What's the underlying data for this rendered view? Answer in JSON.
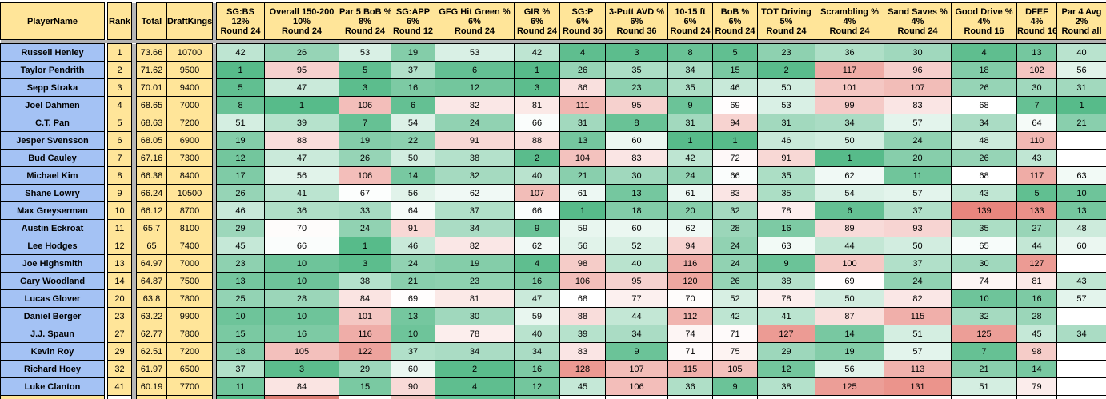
{
  "colors": {
    "header_bg": "#ffe599",
    "player_bg": "#a4c2f4",
    "yellow_cell_bg": "#ffe599",
    "separator": "#b7b7b7",
    "header_divider": "#b3b3b3",
    "border": "#000000",
    "text": "#000000"
  },
  "color_scale": {
    "min_value": 1,
    "mid_value": 68,
    "max_value": 145,
    "min_color": "#57bb8a",
    "mid_color": "#ffffff",
    "max_color": "#e67c73"
  },
  "header": {
    "player": "PlayerName",
    "rank": "Rank",
    "total": "Total",
    "draftkings": "DraftKings"
  },
  "stat_columns": [
    {
      "title": "SG:BS",
      "weight": "12%",
      "round": "Round 24"
    },
    {
      "title": "Overall 150-200",
      "weight": "10%",
      "round": "Round 24"
    },
    {
      "title": "Par 5 BoB %",
      "weight": "8%",
      "round": "Round 24"
    },
    {
      "title": "SG:APP",
      "weight": "6%",
      "round": "Round 12"
    },
    {
      "title": "GFG Hit Green %",
      "weight": "6%",
      "round": "Round 24"
    },
    {
      "title": "GIR %",
      "weight": "6%",
      "round": "Round 24"
    },
    {
      "title": "SG:P",
      "weight": "6%",
      "round": "Round 36"
    },
    {
      "title": "3-Putt AVD %",
      "weight": "6%",
      "round": "Round 36"
    },
    {
      "title": "10-15 ft",
      "weight": "6%",
      "round": "Round 24"
    },
    {
      "title": "BoB %",
      "weight": "6%",
      "round": "Round 24"
    },
    {
      "title": "TOT Driving",
      "weight": "5%",
      "round": "Round 24"
    },
    {
      "title": "Scrambling %",
      "weight": "4%",
      "round": "Round 24"
    },
    {
      "title": "Sand Saves %",
      "weight": "4%",
      "round": "Round 24"
    },
    {
      "title": "Good Drive %",
      "weight": "4%",
      "round": "Round 16"
    },
    {
      "title": "DFEF",
      "weight": "4%",
      "round": "Round 16"
    },
    {
      "title": "Par 4 Avg",
      "weight": "2%",
      "round": "Round all"
    }
  ],
  "players": [
    {
      "name": "Russell Henley",
      "rank": "1",
      "total": "73.66",
      "dk": "10700",
      "stats": [
        42,
        26,
        53,
        19,
        53,
        42,
        4,
        3,
        8,
        5,
        23,
        36,
        30,
        4,
        13,
        40
      ]
    },
    {
      "name": "Taylor Pendrith",
      "rank": "2",
      "total": "71.62",
      "dk": "9500",
      "stats": [
        1,
        95,
        5,
        37,
        6,
        1,
        26,
        35,
        34,
        15,
        2,
        117,
        96,
        18,
        102,
        56
      ]
    },
    {
      "name": "Sepp Straka",
      "rank": "3",
      "total": "70.01",
      "dk": "9400",
      "stats": [
        5,
        47,
        3,
        16,
        12,
        3,
        86,
        23,
        35,
        46,
        50,
        101,
        107,
        26,
        30,
        31
      ]
    },
    {
      "name": "Joel Dahmen",
      "rank": "4",
      "total": "68.65",
      "dk": "7000",
      "stats": [
        8,
        1,
        106,
        6,
        82,
        81,
        111,
        95,
        9,
        69,
        53,
        99,
        83,
        68,
        7,
        1
      ]
    },
    {
      "name": "C.T. Pan",
      "rank": "5",
      "total": "68.63",
      "dk": "7200",
      "stats": [
        51,
        39,
        7,
        54,
        24,
        66,
        31,
        8,
        31,
        94,
        31,
        34,
        57,
        34,
        64,
        21
      ]
    },
    {
      "name": "Jesper Svensson",
      "rank": "6",
      "total": "68.05",
      "dk": "6900",
      "stats": [
        19,
        88,
        19,
        22,
        91,
        88,
        13,
        60,
        1,
        1,
        46,
        50,
        24,
        48,
        110,
        null
      ]
    },
    {
      "name": "Bud Cauley",
      "rank": "7",
      "total": "67.16",
      "dk": "7300",
      "stats": [
        12,
        47,
        26,
        50,
        38,
        2,
        104,
        83,
        42,
        72,
        91,
        1,
        20,
        26,
        43,
        null
      ]
    },
    {
      "name": "Michael Kim",
      "rank": "8",
      "total": "66.38",
      "dk": "8400",
      "stats": [
        17,
        56,
        106,
        14,
        32,
        40,
        21,
        30,
        24,
        66,
        35,
        62,
        11,
        68,
        117,
        63
      ]
    },
    {
      "name": "Shane Lowry",
      "rank": "9",
      "total": "66.24",
      "dk": "10500",
      "stats": [
        26,
        41,
        67,
        56,
        62,
        107,
        61,
        13,
        61,
        83,
        35,
        54,
        57,
        43,
        5,
        10
      ]
    },
    {
      "name": "Max Greyserman",
      "rank": "10",
      "total": "66.12",
      "dk": "8700",
      "stats": [
        46,
        36,
        33,
        64,
        37,
        66,
        1,
        18,
        20,
        32,
        78,
        6,
        37,
        139,
        133,
        13
      ]
    },
    {
      "name": "Austin Eckroat",
      "rank": "11",
      "total": "65.7",
      "dk": "8100",
      "stats": [
        29,
        70,
        24,
        91,
        34,
        9,
        59,
        60,
        62,
        28,
        16,
        89,
        93,
        35,
        27,
        48
      ]
    },
    {
      "name": "Lee Hodges",
      "rank": "12",
      "total": "65",
      "dk": "7400",
      "stats": [
        45,
        66,
        1,
        46,
        82,
        62,
        56,
        52,
        94,
        24,
        63,
        44,
        50,
        65,
        44,
        60
      ]
    },
    {
      "name": "Joe Highsmith",
      "rank": "13",
      "total": "64.97",
      "dk": "7000",
      "stats": [
        23,
        10,
        3,
        24,
        19,
        4,
        98,
        40,
        116,
        24,
        9,
        100,
        37,
        30,
        127,
        null
      ]
    },
    {
      "name": "Gary Woodland",
      "rank": "14",
      "total": "64.87",
      "dk": "7500",
      "stats": [
        13,
        10,
        38,
        21,
        23,
        16,
        106,
        95,
        120,
        26,
        38,
        69,
        24,
        74,
        81,
        43
      ]
    },
    {
      "name": "Lucas Glover",
      "rank": "20",
      "total": "63.8",
      "dk": "7800",
      "stats": [
        25,
        28,
        84,
        69,
        81,
        47,
        68,
        77,
        70,
        52,
        78,
        50,
        82,
        10,
        16,
        57
      ]
    },
    {
      "name": "Daniel Berger",
      "rank": "23",
      "total": "63.22",
      "dk": "9900",
      "stats": [
        10,
        10,
        101,
        13,
        30,
        59,
        88,
        44,
        112,
        42,
        41,
        87,
        115,
        32,
        28,
        null
      ]
    },
    {
      "name": "J.J. Spaun",
      "rank": "27",
      "total": "62.77",
      "dk": "7800",
      "stats": [
        15,
        16,
        116,
        10,
        78,
        40,
        39,
        34,
        74,
        71,
        127,
        14,
        51,
        125,
        45,
        34
      ]
    },
    {
      "name": "Kevin Roy",
      "rank": "29",
      "total": "62.51",
      "dk": "7200",
      "stats": [
        18,
        105,
        122,
        37,
        34,
        34,
        83,
        9,
        71,
        75,
        29,
        19,
        57,
        7,
        98,
        null
      ]
    },
    {
      "name": "Richard Hoey",
      "rank": "32",
      "total": "61.97",
      "dk": "6500",
      "stats": [
        37,
        3,
        29,
        60,
        2,
        16,
        128,
        107,
        115,
        105,
        12,
        56,
        113,
        21,
        14,
        null
      ]
    },
    {
      "name": "Luke Clanton",
      "rank": "41",
      "total": "60.19",
      "dk": "7700",
      "stats": [
        11,
        84,
        15,
        90,
        4,
        12,
        45,
        106,
        36,
        9,
        38,
        125,
        131,
        51,
        79,
        null
      ]
    }
  ],
  "partial_row_colors": [
    "#57bb8a",
    "#dd7f75",
    "#ffffff",
    "#f0c0bc",
    "#62c095",
    "#7fcaa6",
    "#ffffff",
    "#ffffff",
    "#ffffff",
    "#ffffff",
    "#ffffff",
    "#ffffff",
    "#ffffff",
    "#ffffff",
    "#ffffff",
    "#ffffff"
  ]
}
